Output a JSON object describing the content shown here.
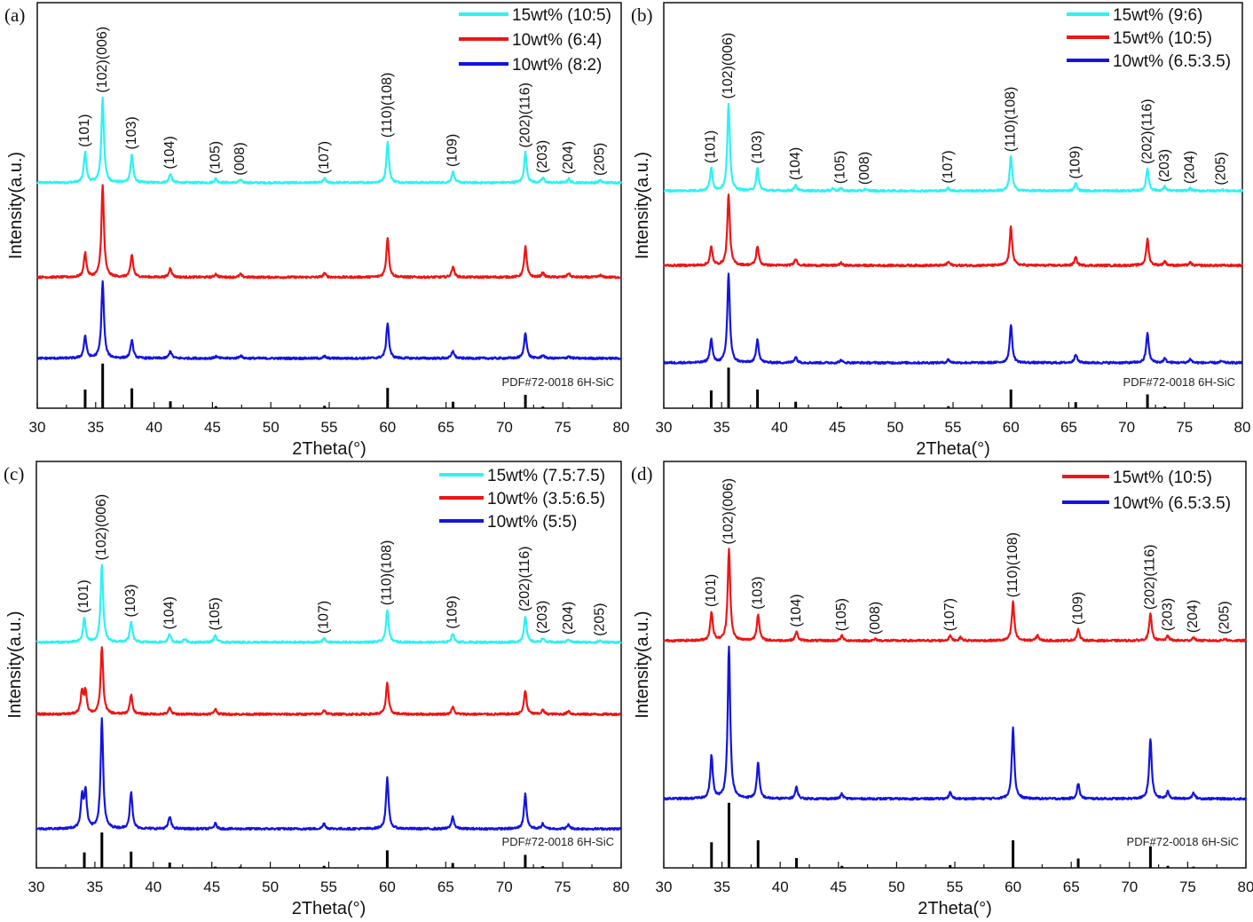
{
  "chart_data": [
    {
      "type": "line",
      "panel_label": "(a)",
      "xlabel": "2Theta(°)",
      "ylabel": "Intensity(a.u.)",
      "xlim": [
        30,
        80
      ],
      "ylim": [
        0,
        100
      ],
      "xticks": [
        30,
        35,
        40,
        45,
        50,
        55,
        60,
        65,
        70,
        75,
        80
      ],
      "grid": false,
      "legend_placement": "top-right",
      "reference_label": "PDF#72-0018 6H-SiC",
      "reference_peaks": [
        [
          34.1,
          4.6
        ],
        [
          35.6,
          11
        ],
        [
          38.1,
          4.9
        ],
        [
          41.4,
          1.7
        ],
        [
          45.3,
          0.5
        ],
        [
          54.6,
          0.6
        ],
        [
          60.0,
          5
        ],
        [
          65.6,
          1.6
        ],
        [
          71.8,
          3.3
        ],
        [
          73.3,
          0.4
        ],
        [
          75.5,
          0.2
        ]
      ],
      "peak_labels": [
        {
          "x": 34.1,
          "text": "(101)"
        },
        {
          "x": 35.6,
          "text": "(102)(006)"
        },
        {
          "x": 38.1,
          "text": "(103)"
        },
        {
          "x": 41.4,
          "text": "(104)"
        },
        {
          "x": 45.3,
          "text": "(105)"
        },
        {
          "x": 47.4,
          "text": "(008)"
        },
        {
          "x": 54.6,
          "text": "(107)"
        },
        {
          "x": 60.0,
          "text": "(110)(108)"
        },
        {
          "x": 65.6,
          "text": "(109)"
        },
        {
          "x": 71.8,
          "text": "(202)(116)"
        },
        {
          "x": 73.3,
          "text": "(203)"
        },
        {
          "x": 75.5,
          "text": "(204)"
        },
        {
          "x": 78.2,
          "text": "(205)"
        }
      ],
      "series": [
        {
          "name": "15wt% (10:5)",
          "color": "#2ef2f2",
          "baseline": 55.6,
          "peaks": [
            [
              34.1,
              7.5
            ],
            [
              35.6,
              21
            ],
            [
              38.1,
              7
            ],
            [
              41.4,
              2.2
            ],
            [
              45.3,
              1
            ],
            [
              47.4,
              0.7
            ],
            [
              54.6,
              1
            ],
            [
              60.0,
              10
            ],
            [
              65.6,
              2.8
            ],
            [
              71.8,
              7.5
            ],
            [
              73.3,
              1.2
            ],
            [
              75.5,
              1
            ],
            [
              78.2,
              0.6
            ]
          ]
        },
        {
          "name": "10wt% (6:4)",
          "color": "#ee1515",
          "baseline": 32.3,
          "peaks": [
            [
              34.1,
              6
            ],
            [
              35.6,
              22.6
            ],
            [
              38.1,
              5.5
            ],
            [
              41.4,
              2.3
            ],
            [
              45.3,
              0.8
            ],
            [
              47.4,
              0.7
            ],
            [
              54.6,
              1
            ],
            [
              60.0,
              9.8
            ],
            [
              65.6,
              2.7
            ],
            [
              71.8,
              7.5
            ],
            [
              73.3,
              1.1
            ],
            [
              75.5,
              1
            ],
            [
              78.2,
              0.5
            ]
          ]
        },
        {
          "name": "10wt% (8:2)",
          "color": "#1414e0",
          "baseline": 12.3,
          "peaks": [
            [
              34.1,
              5.5
            ],
            [
              35.6,
              19
            ],
            [
              38.1,
              4.5
            ],
            [
              41.4,
              1.8
            ],
            [
              45.3,
              0.5
            ],
            [
              47.4,
              0.7
            ],
            [
              54.6,
              0.5
            ],
            [
              60.0,
              8.8
            ],
            [
              65.6,
              1.8
            ],
            [
              71.8,
              6.4
            ],
            [
              73.3,
              0.8
            ],
            [
              75.5,
              0.5
            ]
          ]
        }
      ]
    },
    {
      "type": "line",
      "panel_label": "(b)",
      "xlabel": "2Theta(°)",
      "ylabel": "Intensity(a.u.)",
      "xlim": [
        30,
        80
      ],
      "ylim": [
        0,
        100
      ],
      "xticks": [
        30,
        35,
        40,
        45,
        50,
        55,
        60,
        65,
        70,
        75,
        80
      ],
      "grid": false,
      "legend_placement": "top-right",
      "reference_label": "PDF#72-0018 6H-SiC",
      "reference_peaks": [
        [
          34.1,
          4.4
        ],
        [
          35.6,
          10
        ],
        [
          38.1,
          4.6
        ],
        [
          41.4,
          1.6
        ],
        [
          45.3,
          0.4
        ],
        [
          54.6,
          0.5
        ],
        [
          60.0,
          4.6
        ],
        [
          65.6,
          1.5
        ],
        [
          71.8,
          3.4
        ],
        [
          73.3,
          0.4
        ]
      ],
      "peak_labels": [
        {
          "x": 34.1,
          "text": "(101)"
        },
        {
          "x": 35.6,
          "text": "(102)(006)"
        },
        {
          "x": 38.1,
          "text": "(103)"
        },
        {
          "x": 41.4,
          "text": "(104)"
        },
        {
          "x": 45.3,
          "text": "(105)"
        },
        {
          "x": 47.4,
          "text": "(008)"
        },
        {
          "x": 54.6,
          "text": "(107)"
        },
        {
          "x": 60.0,
          "text": "(110)(108)"
        },
        {
          "x": 65.6,
          "text": "(109)"
        },
        {
          "x": 71.8,
          "text": "(202)(116)"
        },
        {
          "x": 73.3,
          "text": "(203)"
        },
        {
          "x": 75.5,
          "text": "(204)"
        },
        {
          "x": 78.2,
          "text": "(205)"
        }
      ],
      "series": [
        {
          "name": "15wt% (9:6)",
          "color": "#2ef2f2",
          "baseline": 53.6,
          "peaks": [
            [
              34.1,
              5.5
            ],
            [
              35.6,
              21.5
            ],
            [
              38.1,
              5.5
            ],
            [
              41.4,
              1.5
            ],
            [
              44.6,
              0.6
            ],
            [
              45.3,
              0.6
            ],
            [
              47.4,
              0.4
            ],
            [
              54.6,
              0.7
            ],
            [
              60.0,
              8.5
            ],
            [
              65.6,
              1.8
            ],
            [
              71.8,
              5.5
            ],
            [
              73.3,
              1
            ],
            [
              75.5,
              0.6
            ],
            [
              78.2,
              0.3
            ]
          ]
        },
        {
          "name": "15wt% (10:5)",
          "color": "#ee1515",
          "baseline": 35.2,
          "peaks": [
            [
              34.1,
              4.5
            ],
            [
              35.6,
              17.6
            ],
            [
              38.1,
              4.8
            ],
            [
              41.4,
              1.7
            ],
            [
              45.3,
              0.6
            ],
            [
              54.6,
              0.9
            ],
            [
              60.0,
              9.6
            ],
            [
              65.6,
              2
            ],
            [
              71.8,
              6.5
            ],
            [
              73.3,
              1
            ],
            [
              75.5,
              0.7
            ]
          ]
        },
        {
          "name": "10wt% (6.5:3.5)",
          "color": "#1414e0",
          "baseline": 11.2,
          "peaks": [
            [
              34.1,
              5.8
            ],
            [
              35.6,
              22
            ],
            [
              38.1,
              5.8
            ],
            [
              41.4,
              1.5
            ],
            [
              45.3,
              0.6
            ],
            [
              54.6,
              0.8
            ],
            [
              60.0,
              9.4
            ],
            [
              65.6,
              2.2
            ],
            [
              71.8,
              7.4
            ],
            [
              73.3,
              1
            ],
            [
              75.5,
              0.9
            ],
            [
              78.2,
              0.4
            ]
          ]
        }
      ]
    },
    {
      "type": "line",
      "panel_label": "(c)",
      "xlabel": "2Theta(°)",
      "ylabel": "Intensity(a.u.)",
      "xlim": [
        30,
        80
      ],
      "ylim": [
        0,
        100
      ],
      "xticks": [
        30,
        35,
        40,
        45,
        50,
        55,
        60,
        65,
        70,
        75,
        80
      ],
      "grid": false,
      "legend_placement": "top-right",
      "reference_label": "PDF#72-0018 6H-SiC",
      "reference_peaks": [
        [
          34.1,
          3.8
        ],
        [
          35.6,
          8.7
        ],
        [
          38.1,
          4
        ],
        [
          41.4,
          1.3
        ],
        [
          45.3,
          0.3
        ],
        [
          47.4,
          0.3
        ],
        [
          54.6,
          0.5
        ],
        [
          60.0,
          4.3
        ],
        [
          65.6,
          1.2
        ],
        [
          71.8,
          3.2
        ],
        [
          73.3,
          0.4
        ]
      ],
      "peak_labels": [
        {
          "x": 34.1,
          "text": "(101)"
        },
        {
          "x": 35.6,
          "text": "(102)(006)"
        },
        {
          "x": 38.1,
          "text": "(103)"
        },
        {
          "x": 41.4,
          "text": "(104)"
        },
        {
          "x": 45.3,
          "text": "(105)"
        },
        {
          "x": 54.6,
          "text": "(107)"
        },
        {
          "x": 60.0,
          "text": "(110)(108)"
        },
        {
          "x": 65.6,
          "text": "(109)"
        },
        {
          "x": 71.8,
          "text": "(202)(116)"
        },
        {
          "x": 73.3,
          "text": "(203)"
        },
        {
          "x": 75.5,
          "text": "(204)"
        },
        {
          "x": 78.2,
          "text": "(205)"
        }
      ],
      "series": [
        {
          "name": "15wt% (7.5:7.5)",
          "color": "#2ef2f2",
          "baseline": 55.5,
          "peaks": [
            [
              34.1,
              6
            ],
            [
              35.6,
              19
            ],
            [
              38.1,
              5
            ],
            [
              41.4,
              2
            ],
            [
              42.7,
              0.8
            ],
            [
              45.3,
              1.8
            ],
            [
              54.6,
              1
            ],
            [
              60.0,
              8
            ],
            [
              65.6,
              2.2
            ],
            [
              71.8,
              6.5
            ],
            [
              73.3,
              1
            ],
            [
              75.5,
              0.8
            ],
            [
              78.2,
              0.4
            ]
          ]
        },
        {
          "name": "10wt% (3.5:6.5)",
          "color": "#ee1515",
          "baseline": 37.8,
          "peaks": [
            [
              33.9,
              5.5
            ],
            [
              34.2,
              5.5
            ],
            [
              35.6,
              16.6
            ],
            [
              38.1,
              4.8
            ],
            [
              41.4,
              1.5
            ],
            [
              45.3,
              1.3
            ],
            [
              54.6,
              1
            ],
            [
              60.0,
              7.8
            ],
            [
              65.6,
              1.8
            ],
            [
              71.8,
              5.8
            ],
            [
              73.3,
              1
            ],
            [
              75.5,
              0.8
            ]
          ]
        },
        {
          "name": "10wt% (5:5)",
          "color": "#1414e0",
          "baseline": 9.6,
          "peaks": [
            [
              33.9,
              7.5
            ],
            [
              34.2,
              9
            ],
            [
              35.6,
              27
            ],
            [
              38.1,
              9
            ],
            [
              41.4,
              3
            ],
            [
              45.3,
              1.3
            ],
            [
              54.6,
              1.3
            ],
            [
              60.0,
              12.5
            ],
            [
              65.6,
              3
            ],
            [
              71.8,
              8.5
            ],
            [
              73.3,
              1.2
            ],
            [
              75.5,
              1
            ]
          ]
        }
      ]
    },
    {
      "type": "line",
      "panel_label": "(d)",
      "xlabel": "2Theta(°)",
      "ylabel": "Intensity(a.u.)",
      "xlim": [
        30,
        80
      ],
      "ylim": [
        0,
        100
      ],
      "xticks": [
        30,
        35,
        40,
        45,
        50,
        55,
        60,
        65,
        70,
        75,
        80
      ],
      "grid": false,
      "legend_placement": "top-right",
      "reference_label": "PDF#72-0018 6H-SiC",
      "reference_peaks": [
        [
          34.1,
          6.3
        ],
        [
          35.6,
          16
        ],
        [
          38.1,
          6.8
        ],
        [
          41.4,
          2.4
        ],
        [
          45.3,
          0.5
        ],
        [
          54.6,
          0.7
        ],
        [
          60.0,
          6.8
        ],
        [
          65.6,
          2.3
        ],
        [
          71.8,
          5.3
        ],
        [
          73.3,
          0.5
        ],
        [
          75.5,
          0.3
        ]
      ],
      "peak_labels": [
        {
          "x": 34.1,
          "text": "(101)"
        },
        {
          "x": 35.6,
          "text": "(102)(006)"
        },
        {
          "x": 38.1,
          "text": "(103)"
        },
        {
          "x": 41.4,
          "text": "(104)"
        },
        {
          "x": 45.3,
          "text": "(105)"
        },
        {
          "x": 48.2,
          "text": "(008)"
        },
        {
          "x": 54.6,
          "text": "(107)"
        },
        {
          "x": 60.0,
          "text": "(110)(108)"
        },
        {
          "x": 65.6,
          "text": "(109)"
        },
        {
          "x": 71.8,
          "text": "(202)(116)"
        },
        {
          "x": 73.3,
          "text": "(203)"
        },
        {
          "x": 75.5,
          "text": "(204)"
        },
        {
          "x": 78.2,
          "text": "(205)"
        }
      ],
      "series": [
        {
          "name": "15wt% (10:5)",
          "color": "#ee1515",
          "baseline": 55.9,
          "peaks": [
            [
              34.1,
              7
            ],
            [
              35.6,
              22.5
            ],
            [
              38.1,
              6.5
            ],
            [
              41.4,
              2.2
            ],
            [
              45.3,
              1.2
            ],
            [
              48.2,
              0.4
            ],
            [
              54.6,
              1.2
            ],
            [
              55.5,
              0.8
            ],
            [
              60.0,
              9.5
            ],
            [
              62.1,
              1.3
            ],
            [
              65.6,
              2.8
            ],
            [
              71.8,
              6.5
            ],
            [
              73.3,
              1.2
            ],
            [
              75.5,
              0.8
            ],
            [
              78.2,
              0.5
            ]
          ]
        },
        {
          "name": "10wt% (6.5:3.5)",
          "color": "#1414e0",
          "baseline": 17,
          "peaks": [
            [
              34.1,
              10.5
            ],
            [
              35.6,
              37.3
            ],
            [
              38.1,
              8.8
            ],
            [
              41.4,
              2.8
            ],
            [
              45.3,
              1.2
            ],
            [
              54.6,
              1.5
            ],
            [
              60.0,
              17.5
            ],
            [
              65.6,
              3.7
            ],
            [
              71.8,
              14.8
            ],
            [
              73.3,
              1.7
            ],
            [
              75.5,
              1.5
            ]
          ]
        }
      ]
    }
  ]
}
